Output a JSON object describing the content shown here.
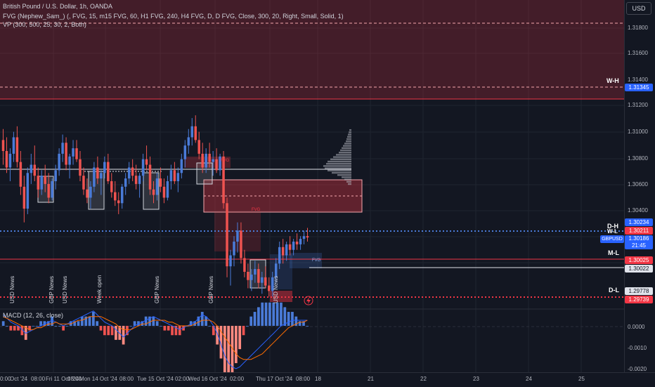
{
  "header": {
    "title": "British Pound / U.S. Dollar, 1h, OANDA",
    "indicator_fvg": "FVG (Nephew_Sam_) (, FVG, 15, m15 FVG, 60, H1 FVG, 240, H4 FVG, D, D FVG, Close, 300, 20, Right, Small, Solid, 1)",
    "indicator_vp": "VP (300, 500, 25, 30, 2, Both)",
    "macd": "MACD (12, 26, close)"
  },
  "currency_button": "USD",
  "price_axis": [
    "1.31800",
    "1.31600",
    "1.31400",
    "1.31200",
    "1.31000",
    "1.30800",
    "1.30600",
    "1.30400",
    "1.30200",
    "1.30000",
    "1.29800"
  ],
  "macd_axis": [
    "0.0000",
    "-0.0010",
    "-0.0020"
  ],
  "price_tags": {
    "wh": "1.31345",
    "dh": "1.30234",
    "wl": "1.30211",
    "symbol": "GBPUSD",
    "last": "1.30186",
    "countdown": "21:45",
    "ml_red": "1.30025",
    "ml_white": "1.30022",
    "dl_white": "1.29778",
    "dl_red": "1.29739"
  },
  "level_labels": {
    "wh": "W-H",
    "dh": "D-H",
    "wl": "W-L",
    "ml": "M-L",
    "dl": "D-L"
  },
  "fvg_labels": [
    "FVG",
    "FVG",
    "FVG"
  ],
  "news_labels": [
    "USD News",
    "GBP News",
    "USD News",
    "Week open",
    "GBP News",
    "GBP News",
    "USD News"
  ],
  "time_axis": [
    "0:00",
    "Oct '24",
    "08:00",
    "Fri 11 Oct '24",
    "08:00",
    "Mon 14 Oct '24",
    "08:00",
    "Tue 15 Oct '24",
    "02:00",
    "Wed 16 Oct '24",
    "02:00",
    "Thu 17 Oct '24",
    "08:00",
    "18",
    "21",
    "22",
    "23",
    "24",
    "25"
  ],
  "colors": {
    "background": "#131722",
    "up": "#4a7bd8",
    "down": "#ef5350",
    "label_blue": "#2962ff",
    "label_red": "#f23645",
    "zone_red": "#f23645"
  },
  "icons": [
    "lightning-icon"
  ],
  "chart_data": {
    "type": "candlestick",
    "symbol": "GBPUSD",
    "timeframe": "1h",
    "last_price": 1.30186,
    "levels": {
      "W-H": 1.31345,
      "D-H": 1.30234,
      "W-L": 1.30211,
      "M-L": 1.30025,
      "D-L": 1.29739
    },
    "ylim": [
      1.2972,
      1.3192
    ],
    "candles": [
      [
        1.309,
        1.3098,
        1.3072,
        1.3082
      ],
      [
        1.3082,
        1.3092,
        1.3066,
        1.307
      ],
      [
        1.307,
        1.3084,
        1.306,
        1.308
      ],
      [
        1.308,
        1.3096,
        1.3074,
        1.3092
      ],
      [
        1.3092,
        1.31,
        1.307,
        1.3074
      ],
      [
        1.3074,
        1.3082,
        1.305,
        1.3056
      ],
      [
        1.3056,
        1.3064,
        1.303,
        1.304
      ],
      [
        1.304,
        1.307,
        1.3036,
        1.3066
      ],
      [
        1.3066,
        1.308,
        1.3058,
        1.3072
      ],
      [
        1.3072,
        1.3086,
        1.306,
        1.3064
      ],
      [
        1.3064,
        1.307,
        1.3048,
        1.3054
      ],
      [
        1.3054,
        1.3068,
        1.305,
        1.3064
      ],
      [
        1.3064,
        1.3072,
        1.3052,
        1.3058
      ],
      [
        1.3058,
        1.3066,
        1.3044,
        1.3048
      ],
      [
        1.3048,
        1.3062,
        1.3046,
        1.306
      ],
      [
        1.306,
        1.3072,
        1.3054,
        1.3068
      ],
      [
        1.3068,
        1.3084,
        1.3064,
        1.308
      ],
      [
        1.308,
        1.3094,
        1.3074,
        1.3088
      ],
      [
        1.3088,
        1.3092,
        1.3068,
        1.3072
      ],
      [
        1.3072,
        1.308,
        1.3062,
        1.3078
      ],
      [
        1.3078,
        1.309,
        1.3072,
        1.3084
      ],
      [
        1.3084,
        1.309,
        1.3074,
        1.3076
      ],
      [
        1.3076,
        1.3082,
        1.306,
        1.3064
      ],
      [
        1.3064,
        1.307,
        1.305,
        1.3054
      ],
      [
        1.3054,
        1.3062,
        1.3044,
        1.3048
      ],
      [
        1.3048,
        1.306,
        1.304,
        1.3056
      ],
      [
        1.3056,
        1.3074,
        1.3052,
        1.307
      ],
      [
        1.307,
        1.3078,
        1.3058,
        1.3062
      ],
      [
        1.3062,
        1.3068,
        1.305,
        1.3066
      ],
      [
        1.3066,
        1.3078,
        1.3062,
        1.3074
      ],
      [
        1.3074,
        1.308,
        1.3058,
        1.306
      ],
      [
        1.306,
        1.3066,
        1.3048,
        1.3052
      ],
      [
        1.3052,
        1.306,
        1.3042,
        1.3046
      ],
      [
        1.3046,
        1.3052,
        1.3036,
        1.3044
      ],
      [
        1.3044,
        1.3058,
        1.304,
        1.3056
      ],
      [
        1.3056,
        1.3066,
        1.305,
        1.3062
      ],
      [
        1.3062,
        1.3074,
        1.3058,
        1.307
      ],
      [
        1.307,
        1.3076,
        1.306,
        1.3064
      ],
      [
        1.3064,
        1.3072,
        1.3054,
        1.3058
      ],
      [
        1.3058,
        1.3066,
        1.3048,
        1.3064
      ],
      [
        1.3064,
        1.308,
        1.306,
        1.3076
      ],
      [
        1.3076,
        1.3086,
        1.3068,
        1.3072
      ],
      [
        1.3072,
        1.3078,
        1.305,
        1.3054
      ],
      [
        1.3054,
        1.306,
        1.3044,
        1.305
      ],
      [
        1.305,
        1.3066,
        1.3046,
        1.3062
      ],
      [
        1.3062,
        1.307,
        1.3052,
        1.3056
      ],
      [
        1.3056,
        1.3062,
        1.3044,
        1.3048
      ],
      [
        1.3048,
        1.3064,
        1.3046,
        1.306
      ],
      [
        1.306,
        1.3072,
        1.3054,
        1.3068
      ],
      [
        1.3068,
        1.3074,
        1.3058,
        1.306
      ],
      [
        1.306,
        1.307,
        1.3052,
        1.3066
      ],
      [
        1.3066,
        1.308,
        1.3062,
        1.3076
      ],
      [
        1.3076,
        1.309,
        1.307,
        1.3086
      ],
      [
        1.3086,
        1.3098,
        1.308,
        1.3092
      ],
      [
        1.3092,
        1.3106,
        1.3086,
        1.31
      ],
      [
        1.31,
        1.3108,
        1.3088,
        1.309
      ],
      [
        1.309,
        1.3096,
        1.3076,
        1.308
      ],
      [
        1.308,
        1.3088,
        1.3066,
        1.307
      ],
      [
        1.307,
        1.3084,
        1.3066,
        1.308
      ],
      [
        1.308,
        1.3088,
        1.307,
        1.3074
      ],
      [
        1.3074,
        1.3082,
        1.3064,
        1.3076
      ],
      [
        1.3076,
        1.3084,
        1.3066,
        1.3068
      ],
      [
        1.3068,
        1.308,
        1.3064,
        1.3078
      ],
      [
        1.3078,
        1.3082,
        1.304,
        1.3044
      ],
      [
        1.3044,
        1.3048,
        1.299,
        1.2998
      ],
      [
        1.2998,
        1.301,
        1.2984,
        1.3006
      ],
      [
        1.3006,
        1.302,
        1.2998,
        1.3016
      ],
      [
        1.3016,
        1.303,
        1.3008,
        1.3024
      ],
      [
        1.3024,
        1.303,
        1.3,
        1.3004
      ],
      [
        1.3004,
        1.301,
        1.299,
        1.2994
      ],
      [
        1.2994,
        1.3,
        1.2982,
        1.2988
      ],
      [
        1.2988,
        1.2996,
        1.298,
        1.2992
      ],
      [
        1.2992,
        1.3002,
        1.2986,
        1.2996
      ],
      [
        1.2996,
        1.3,
        1.2982,
        1.2986
      ],
      [
        1.2986,
        1.2994,
        1.2978,
        1.299
      ],
      [
        1.299,
        1.2998,
        1.2982,
        1.2984
      ],
      [
        1.2984,
        1.299,
        1.2976,
        1.298
      ],
      [
        1.298,
        1.2994,
        1.2976,
        1.299
      ],
      [
        1.299,
        1.3004,
        1.2986,
        1.3
      ],
      [
        1.3,
        1.3016,
        1.2996,
        1.3012
      ],
      [
        1.3012,
        1.3018,
        1.3,
        1.3006
      ],
      [
        1.3006,
        1.3016,
        1.3002,
        1.3014
      ],
      [
        1.3014,
        1.302,
        1.3006,
        1.301
      ],
      [
        1.301,
        1.3018,
        1.3006,
        1.3016
      ],
      [
        1.3016,
        1.3022,
        1.301,
        1.3014
      ],
      [
        1.3014,
        1.302,
        1.301,
        1.3018
      ],
      [
        1.3018,
        1.3024,
        1.3014,
        1.302
      ],
      [
        1.302,
        1.3026,
        1.3016,
        1.3019
      ]
    ],
    "macd_line": [
      0.0006,
      0.0004,
      0.0002,
      0.0001,
      0.0,
      -0.0002,
      -0.0004,
      -0.0003,
      -0.0002,
      -0.0001,
      0.0,
      0.0001,
      0.0002,
      0.0003,
      0.0002,
      0.0001,
      0.0,
      0.0001,
      0.0002,
      0.0003,
      0.0004,
      0.0005,
      0.0006,
      0.0007,
      0.0008,
      0.0006,
      0.0004,
      0.0002,
      0.0001,
      0.0,
      -0.0002,
      -0.0004,
      -0.0006,
      -0.0004,
      -0.0002,
      0.0,
      0.0001,
      0.0002,
      0.0003,
      0.0004,
      0.0005,
      0.0004,
      0.0003,
      0.0002,
      0.0001,
      0.0,
      -0.0001,
      -0.0002,
      -0.0001,
      0.0,
      0.0001,
      0.0002,
      0.0004,
      0.0006,
      0.0005,
      0.0003,
      0.0,
      -0.0004,
      -0.001,
      -0.0016,
      -0.002,
      -0.0022,
      -0.0023,
      -0.0022,
      -0.002,
      -0.0018,
      -0.0016,
      -0.0014,
      -0.0012,
      -0.001,
      -0.0008,
      -0.0006,
      -0.0004,
      -0.0002,
      0.0,
      0.0001,
      0.0002,
      0.0003,
      0.0003,
      0.0003,
      0.0003,
      0.0003
    ],
    "signal_line": [
      0.0005,
      0.0004,
      0.0003,
      0.0002,
      0.0001,
      0.0,
      -0.0001,
      -0.0002,
      -0.0002,
      -0.0001,
      -0.0001,
      0.0,
      0.0001,
      0.0001,
      0.0002,
      0.0001,
      0.0001,
      0.0001,
      0.0001,
      0.0002,
      0.0003,
      0.0003,
      0.0004,
      0.0005,
      0.0005,
      0.0005,
      0.0005,
      0.0004,
      0.0003,
      0.0002,
      0.0001,
      -0.0001,
      -0.0002,
      -0.0002,
      -0.0002,
      -0.0001,
      0.0,
      0.0001,
      0.0001,
      0.0002,
      0.0003,
      0.0003,
      0.0003,
      0.0003,
      0.0002,
      0.0002,
      0.0001,
      0.0,
      0.0,
      0.0,
      0.0,
      0.0001,
      0.0002,
      0.0003,
      0.0003,
      0.0003,
      0.0002,
      0.0,
      -0.0003,
      -0.0006,
      -0.0009,
      -0.0012,
      -0.0015,
      -0.0017,
      -0.0018,
      -0.0018,
      -0.0018,
      -0.0017,
      -0.0016,
      -0.0015,
      -0.0013,
      -0.0011,
      -0.0009,
      -0.0007,
      -0.0005,
      -0.0003,
      -0.0001,
      0.0,
      0.0001,
      0.0002,
      0.0002,
      0.0003
    ],
    "macd_ylim": [
      -0.0023,
      0.0006
    ]
  }
}
